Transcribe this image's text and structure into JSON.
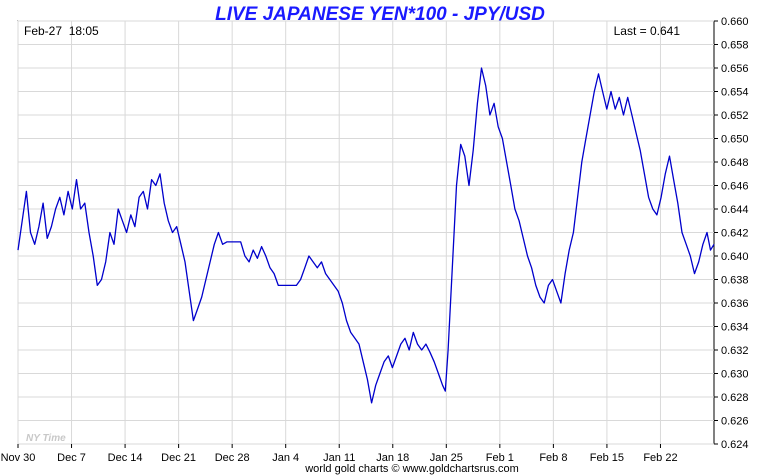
{
  "chart_data": {
    "type": "line",
    "title": "LIVE JAPANESE YEN*100 - JPY/USD",
    "timestamp": "Feb-27  18:05",
    "last_label": "Last = 0.641",
    "watermark": "NY Time",
    "footer": "world gold charts © www.goldchartsrus.com",
    "xlabel": "",
    "ylabel": "",
    "ylim": [
      0.624,
      0.66
    ],
    "grid": true,
    "y_ticks": [
      "0.624",
      "0.626",
      "0.628",
      "0.630",
      "0.632",
      "0.634",
      "0.636",
      "0.638",
      "0.640",
      "0.642",
      "0.644",
      "0.646",
      "0.648",
      "0.650",
      "0.652",
      "0.654",
      "0.656",
      "0.658",
      "0.660"
    ],
    "x_ticks": [
      "Nov 30",
      "Dec 7",
      "Dec 14",
      "Dec 21",
      "Dec 28",
      "Jan 4",
      "Jan 11",
      "Jan 18",
      "Jan 25",
      "Feb 1",
      "Feb 8",
      "Feb 15",
      "Feb 22"
    ],
    "x_range": [
      0,
      100
    ],
    "series": [
      {
        "color": "#0000cc",
        "points": [
          [
            0.0,
            0.6405
          ],
          [
            0.6,
            0.643
          ],
          [
            1.2,
            0.6455
          ],
          [
            1.8,
            0.642
          ],
          [
            2.4,
            0.641
          ],
          [
            3.0,
            0.6425
          ],
          [
            3.6,
            0.6445
          ],
          [
            4.2,
            0.6415
          ],
          [
            4.8,
            0.6425
          ],
          [
            5.4,
            0.644
          ],
          [
            6.0,
            0.645
          ],
          [
            6.6,
            0.6435
          ],
          [
            7.2,
            0.6455
          ],
          [
            7.8,
            0.644
          ],
          [
            8.4,
            0.6465
          ],
          [
            9.0,
            0.644
          ],
          [
            9.6,
            0.6445
          ],
          [
            10.2,
            0.642
          ],
          [
            10.8,
            0.64
          ],
          [
            11.4,
            0.6375
          ],
          [
            12.0,
            0.638
          ],
          [
            12.6,
            0.6395
          ],
          [
            13.2,
            0.642
          ],
          [
            13.8,
            0.641
          ],
          [
            14.4,
            0.644
          ],
          [
            15.0,
            0.643
          ],
          [
            15.6,
            0.642
          ],
          [
            16.2,
            0.6435
          ],
          [
            16.8,
            0.6425
          ],
          [
            17.4,
            0.645
          ],
          [
            18.0,
            0.6455
          ],
          [
            18.6,
            0.644
          ],
          [
            19.2,
            0.6465
          ],
          [
            19.8,
            0.646
          ],
          [
            20.4,
            0.647
          ],
          [
            21.0,
            0.6445
          ],
          [
            21.6,
            0.643
          ],
          [
            22.2,
            0.642
          ],
          [
            22.8,
            0.6425
          ],
          [
            23.4,
            0.641
          ],
          [
            24.0,
            0.6395
          ],
          [
            24.6,
            0.637
          ],
          [
            25.2,
            0.6345
          ],
          [
            25.8,
            0.6355
          ],
          [
            26.4,
            0.6365
          ],
          [
            27.0,
            0.638
          ],
          [
            27.6,
            0.6395
          ],
          [
            28.2,
            0.641
          ],
          [
            28.8,
            0.642
          ],
          [
            29.4,
            0.641
          ],
          [
            30.0,
            0.6412
          ],
          [
            31.0,
            0.6412
          ],
          [
            32.0,
            0.6412
          ],
          [
            32.6,
            0.64
          ],
          [
            33.2,
            0.6395
          ],
          [
            33.8,
            0.6405
          ],
          [
            34.4,
            0.6398
          ],
          [
            35.0,
            0.6408
          ],
          [
            35.6,
            0.64
          ],
          [
            36.2,
            0.639
          ],
          [
            36.8,
            0.6385
          ],
          [
            37.4,
            0.6375
          ],
          [
            38.0,
            0.6375
          ],
          [
            39.0,
            0.6375
          ],
          [
            40.0,
            0.6375
          ],
          [
            40.6,
            0.638
          ],
          [
            41.2,
            0.639
          ],
          [
            41.8,
            0.64
          ],
          [
            42.4,
            0.6395
          ],
          [
            43.0,
            0.639
          ],
          [
            43.6,
            0.6395
          ],
          [
            44.2,
            0.6385
          ],
          [
            44.8,
            0.638
          ],
          [
            45.4,
            0.6375
          ],
          [
            46.0,
            0.637
          ],
          [
            46.6,
            0.636
          ],
          [
            47.2,
            0.6345
          ],
          [
            47.8,
            0.6335
          ],
          [
            48.4,
            0.633
          ],
          [
            49.0,
            0.6325
          ],
          [
            49.6,
            0.631
          ],
          [
            50.2,
            0.6295
          ],
          [
            50.8,
            0.6275
          ],
          [
            51.4,
            0.629
          ],
          [
            52.0,
            0.63
          ],
          [
            52.6,
            0.631
          ],
          [
            53.2,
            0.6315
          ],
          [
            53.8,
            0.6305
          ],
          [
            54.4,
            0.6315
          ],
          [
            55.0,
            0.6325
          ],
          [
            55.6,
            0.633
          ],
          [
            56.2,
            0.632
          ],
          [
            56.8,
            0.6335
          ],
          [
            57.4,
            0.6325
          ],
          [
            58.0,
            0.632
          ],
          [
            58.6,
            0.6325
          ],
          [
            59.2,
            0.6318
          ],
          [
            59.8,
            0.631
          ],
          [
            60.4,
            0.63
          ],
          [
            61.0,
            0.629
          ],
          [
            61.4,
            0.6285
          ],
          [
            61.8,
            0.632
          ],
          [
            62.4,
            0.639
          ],
          [
            63.0,
            0.646
          ],
          [
            63.6,
            0.6495
          ],
          [
            64.2,
            0.6485
          ],
          [
            64.8,
            0.646
          ],
          [
            65.4,
            0.649
          ],
          [
            66.0,
            0.653
          ],
          [
            66.6,
            0.656
          ],
          [
            67.2,
            0.6545
          ],
          [
            67.8,
            0.652
          ],
          [
            68.4,
            0.653
          ],
          [
            69.0,
            0.651
          ],
          [
            69.6,
            0.65
          ],
          [
            70.2,
            0.648
          ],
          [
            70.8,
            0.646
          ],
          [
            71.4,
            0.644
          ],
          [
            72.0,
            0.643
          ],
          [
            72.6,
            0.6415
          ],
          [
            73.2,
            0.64
          ],
          [
            73.8,
            0.639
          ],
          [
            74.4,
            0.6375
          ],
          [
            75.0,
            0.6365
          ],
          [
            75.6,
            0.636
          ],
          [
            76.2,
            0.6375
          ],
          [
            76.8,
            0.638
          ],
          [
            77.4,
            0.637
          ],
          [
            78.0,
            0.636
          ],
          [
            78.6,
            0.6385
          ],
          [
            79.2,
            0.6405
          ],
          [
            79.8,
            0.642
          ],
          [
            80.4,
            0.645
          ],
          [
            81.0,
            0.648
          ],
          [
            81.6,
            0.65
          ],
          [
            82.2,
            0.652
          ],
          [
            82.8,
            0.654
          ],
          [
            83.4,
            0.6555
          ],
          [
            84.0,
            0.654
          ],
          [
            84.6,
            0.6525
          ],
          [
            85.2,
            0.654
          ],
          [
            85.8,
            0.6525
          ],
          [
            86.4,
            0.6535
          ],
          [
            87.0,
            0.652
          ],
          [
            87.6,
            0.6535
          ],
          [
            88.2,
            0.652
          ],
          [
            88.8,
            0.6505
          ],
          [
            89.4,
            0.649
          ],
          [
            90.0,
            0.647
          ],
          [
            90.6,
            0.645
          ],
          [
            91.2,
            0.644
          ],
          [
            91.8,
            0.6435
          ],
          [
            92.4,
            0.645
          ],
          [
            93.0,
            0.647
          ],
          [
            93.6,
            0.6485
          ],
          [
            94.2,
            0.6465
          ],
          [
            94.8,
            0.6445
          ],
          [
            95.4,
            0.642
          ],
          [
            96.0,
            0.641
          ],
          [
            96.6,
            0.64
          ],
          [
            97.2,
            0.6385
          ],
          [
            97.8,
            0.6395
          ],
          [
            98.4,
            0.641
          ],
          [
            99.0,
            0.642
          ],
          [
            99.5,
            0.6405
          ],
          [
            100.0,
            0.641
          ]
        ]
      }
    ]
  }
}
